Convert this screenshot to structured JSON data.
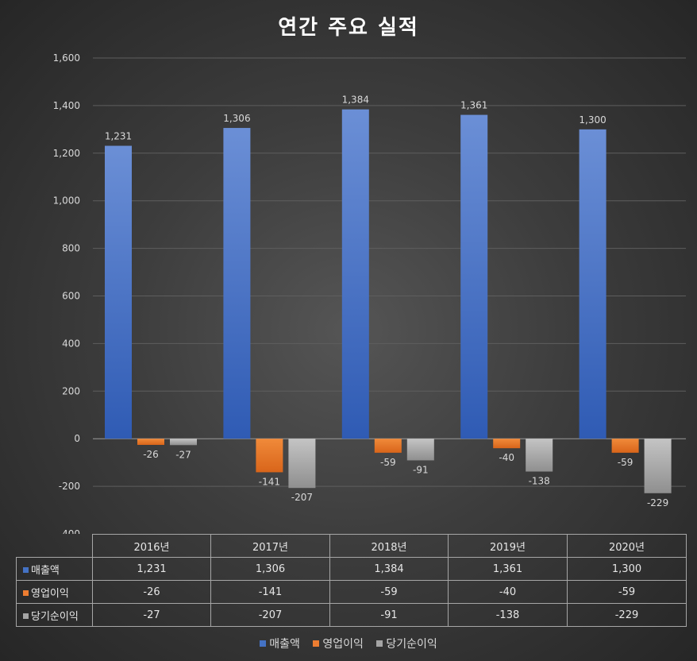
{
  "chart_data": {
    "type": "bar",
    "title": "연간 주요 실적",
    "categories": [
      "2016년",
      "2017년",
      "2018년",
      "2019년",
      "2020년"
    ],
    "series": [
      {
        "name": "매출액",
        "color": "#4472c4",
        "values": [
          1231,
          1306,
          1384,
          1361,
          1300
        ]
      },
      {
        "name": "영업이익",
        "color": "#ed7d31",
        "values": [
          -26,
          -141,
          -59,
          -40,
          -59
        ]
      },
      {
        "name": "당기순이익",
        "color": "#a5a5a5",
        "values": [
          -27,
          -207,
          -91,
          -138,
          -229
        ]
      }
    ],
    "ylim": [
      -400,
      1600
    ],
    "yticks": [
      -400,
      -200,
      0,
      200,
      400,
      600,
      800,
      1000,
      1200,
      1400,
      1600
    ],
    "ytick_labels": [
      "-400",
      "-200",
      "0",
      "200",
      "400",
      "600",
      "800",
      "1,000",
      "1,200",
      "1,400",
      "1,600"
    ],
    "data_labels": [
      [
        "1,231",
        "1,306",
        "1,384",
        "1,361",
        "1,300"
      ],
      [
        "-26",
        "-141",
        "-59",
        "-40",
        "-59"
      ],
      [
        "-27",
        "-207",
        "-91",
        "-138",
        "-229"
      ]
    ],
    "grid": true,
    "legend": "bottom",
    "data_table": true
  }
}
